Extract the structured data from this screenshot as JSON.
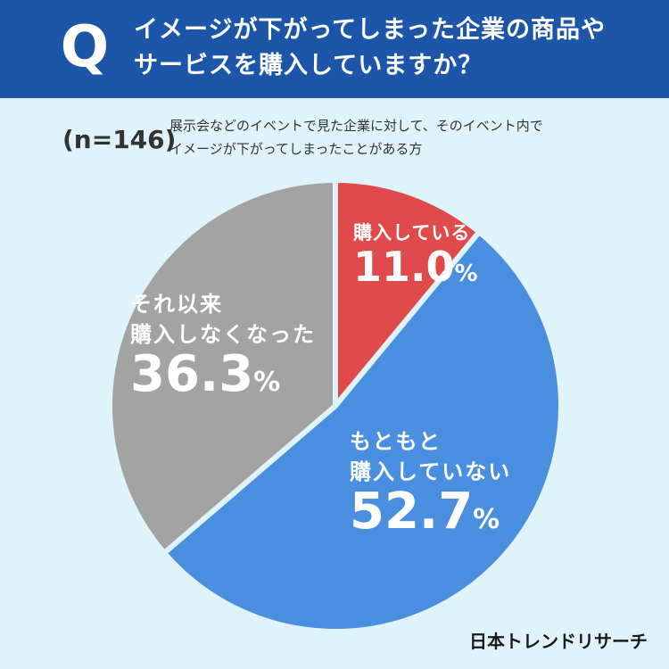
{
  "header": {
    "q_mark": "Q",
    "question_line1": "イメージが下がってしまった企業の商品や",
    "question_line2": "サービスを購入していますか？"
  },
  "sample": {
    "n_label": "(n=146)",
    "description_line1": "展示会などのイベントで見た企業に対して、そのイベント内で",
    "description_line2": "イメージが下がってしまったことがある方"
  },
  "brand": "日本トレンドリサーチ",
  "colors": {
    "header_bg": "#1d56a8",
    "page_bg": "#dff4fa",
    "red": "#e04a4a",
    "blue": "#4a8fdf",
    "gray": "#a3a3a3"
  },
  "chart_data": {
    "type": "pie",
    "start": "12 o'clock, clockwise",
    "unit": "%",
    "slices": [
      {
        "label_line1": "購入している",
        "label_line2": "",
        "value": 11.0,
        "value_text": "11.0",
        "color": "#e04a4a"
      },
      {
        "label_line1": "もともと",
        "label_line2": "購入していない",
        "value": 52.7,
        "value_text": "52.7",
        "color": "#4a8fdf"
      },
      {
        "label_line1": "それ以来",
        "label_line2": "購入しなくなった",
        "value": 36.3,
        "value_text": "36.3",
        "color": "#a3a3a3"
      }
    ]
  }
}
